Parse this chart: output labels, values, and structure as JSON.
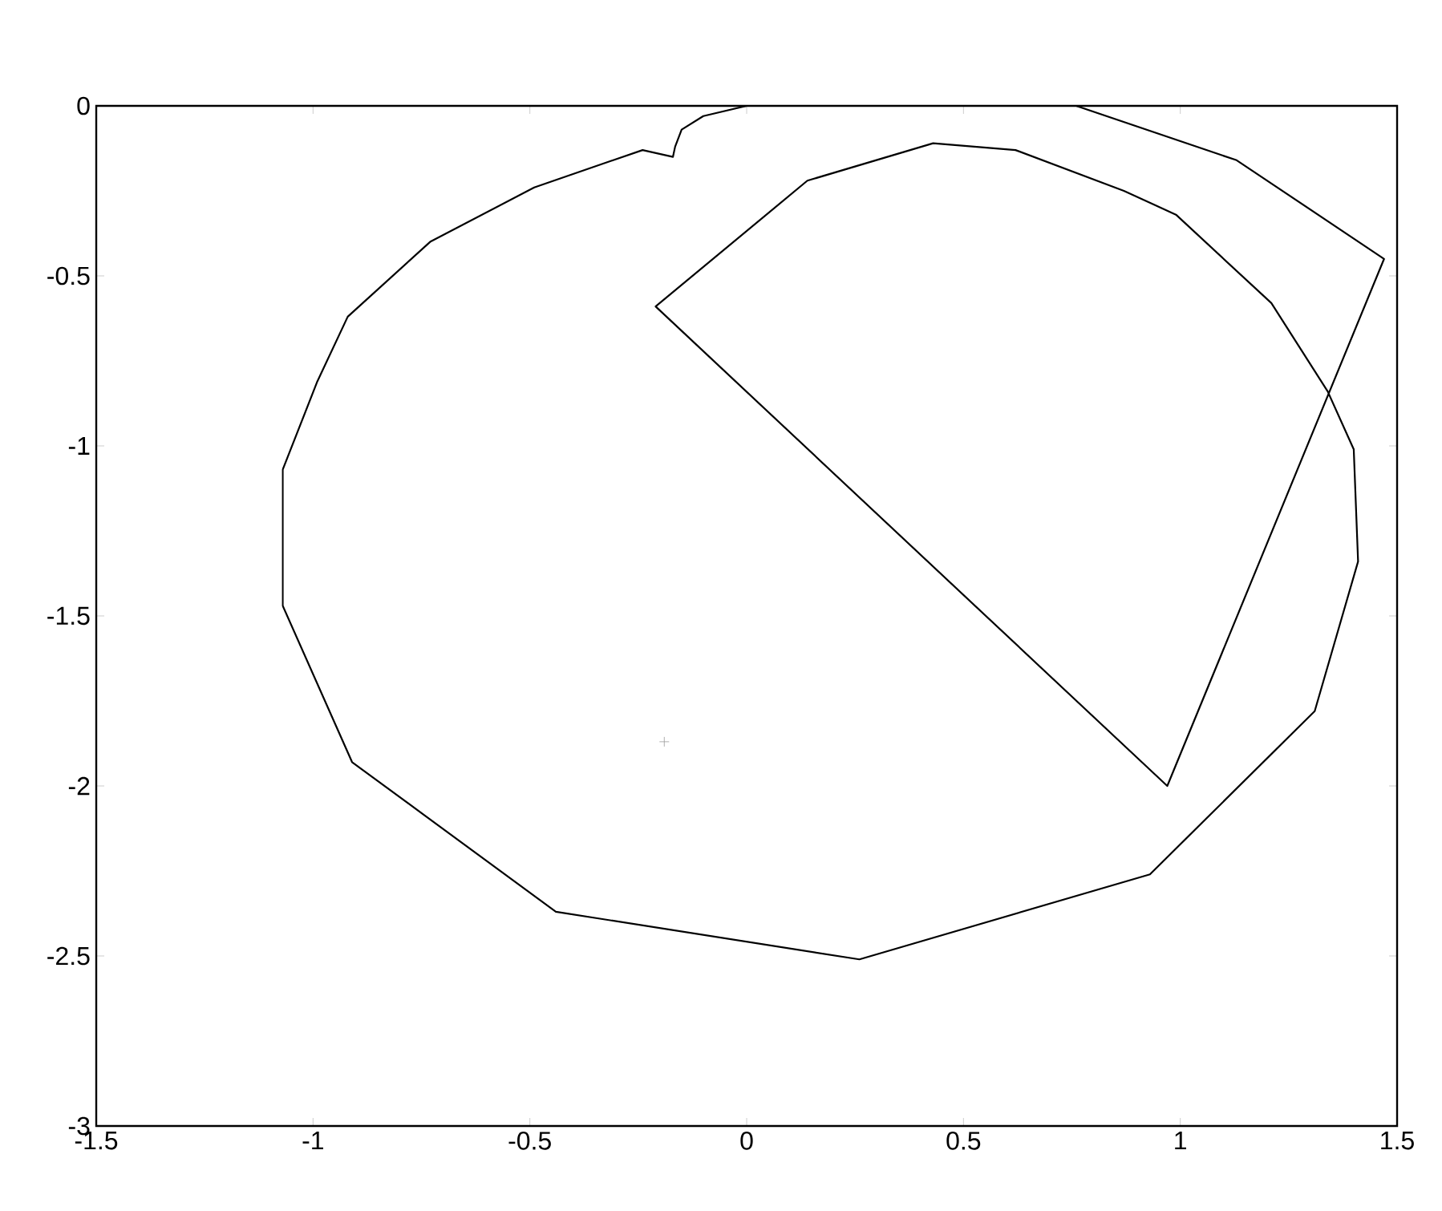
{
  "chart_data": {
    "type": "line",
    "series": [
      {
        "color": "#000000",
        "marker": "none",
        "line_style": "solid",
        "x": [
          0.0,
          -0.1,
          -0.15,
          -0.165,
          -0.17,
          -0.24,
          -0.49,
          -0.73,
          -0.92,
          -0.99,
          -1.07,
          -1.07,
          -0.91,
          -0.44,
          0.26,
          0.93,
          1.31,
          1.41,
          1.4,
          1.34,
          1.21,
          0.99,
          0.87,
          0.62,
          0.43,
          0.14,
          -0.21,
          0.97,
          1.47,
          1.13,
          0.76
        ],
        "values": [
          0.0,
          -0.03,
          -0.07,
          -0.12,
          -0.15,
          -0.13,
          -0.24,
          -0.4,
          -0.62,
          -0.81,
          -1.07,
          -1.47,
          -1.93,
          -2.37,
          -2.51,
          -2.26,
          -1.78,
          -1.34,
          -1.01,
          -0.84,
          -0.58,
          -0.32,
          -0.25,
          -0.13,
          -0.11,
          -0.22,
          -0.59,
          -2.0,
          -0.45,
          -0.16,
          0.0
        ]
      },
      {
        "type": "scatter",
        "color": "#999999",
        "marker": "cross",
        "x": [
          -0.19
        ],
        "values": [
          -1.87
        ]
      }
    ],
    "xlim": [
      -1.5,
      1.5
    ],
    "ylim": [
      -3,
      0
    ],
    "xticks": [
      -1.5,
      -1,
      -0.5,
      0,
      0.5,
      1,
      1.5
    ],
    "yticks": [
      -3,
      -2.5,
      -2,
      -1.5,
      -1,
      -0.5,
      0
    ],
    "grid": false
  }
}
